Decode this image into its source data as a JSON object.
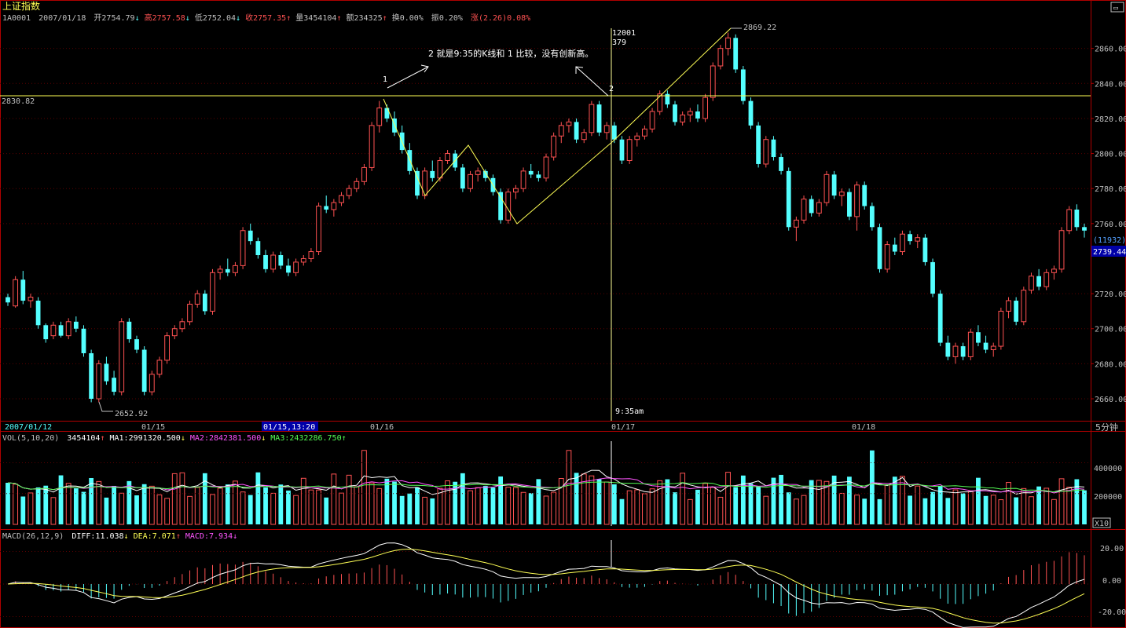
{
  "header": {
    "index_name": "上证指数",
    "code": "1A0001",
    "date": "2007/01/18",
    "open_label": "开",
    "open": "2754.79",
    "high_label": "高",
    "high": "2757.58",
    "low_label": "低",
    "low": "2752.04",
    "close_label": "收",
    "close": "2757.35",
    "volume_label": "量",
    "volume": "3454104",
    "amount_label": "额",
    "amount": "234325",
    "turnover_label": "换",
    "turnover": "0.00%",
    "amplitude_label": "振",
    "amplitude": "0.20%",
    "change_label": "涨",
    "change": "(2.26)",
    "change_pct": "0.08%"
  },
  "colors": {
    "background": "#000000",
    "up": "#ff5252",
    "down": "#54ffff",
    "axis": "#b00000",
    "yellow": "#ffff55",
    "white": "#ffffff",
    "magenta": "#ff55ff",
    "green": "#55ff55",
    "label_bg": "#0000a8"
  },
  "price_axis": {
    "ticks": [
      "2860.00",
      "2840.00",
      "2820.00",
      "2800.00",
      "2780.00",
      "2760.00",
      "2720.00",
      "2700.00",
      "2680.00",
      "2660.00"
    ],
    "cursor_value": "2739.44",
    "cursor_count": "(11932)"
  },
  "time_axis": {
    "labels": [
      "2007/01/12",
      "01/15",
      "01/16",
      "01/17",
      "01/18"
    ],
    "highlight_label": "01/15,13:20",
    "period": "5分钟"
  },
  "annotations": {
    "high_label": "2869.22",
    "low_label": "2652.92",
    "hline_label": "2830.82",
    "point1": "1",
    "point2": "2",
    "note": "2 就是9:35的K线和 1 比较，没有创新高。",
    "cursor_top1": "12001",
    "cursor_top2": "379",
    "cursor_time": "9:35am"
  },
  "volume_panel": {
    "title": "VOL(5,10,20)",
    "value": "3454104",
    "ma1_label": "MA1:",
    "ma1": "2991320.500",
    "ma2_label": "MA2:",
    "ma2": "2842381.500",
    "ma3_label": "MA3:",
    "ma3": "2432286.750",
    "ticks": [
      "400000",
      "200000"
    ],
    "unit": "X10"
  },
  "macd_panel": {
    "title": "MACD(26,12,9)",
    "diff_label": "DIFF:",
    "diff": "11.038",
    "dea_label": "DEA:",
    "dea": "7.071",
    "macd_label": "MACD:",
    "macd": "7.934",
    "ticks": [
      "20.00",
      "0.00",
      "-20.00"
    ]
  },
  "chart_data": {
    "type": "candlestick",
    "y_range": [
      2646,
      2872
    ],
    "volume_range": [
      0,
      540000
    ],
    "macd_range": [
      -26,
      26
    ],
    "candles": [
      [
        2718,
        2720,
        2713,
        2715
      ],
      [
        2713,
        2730,
        2712,
        2728
      ],
      [
        2728,
        2733,
        2714,
        2716
      ],
      [
        2716,
        2720,
        2712,
        2718
      ],
      [
        2716,
        2718,
        2700,
        2702
      ],
      [
        2702,
        2703,
        2692,
        2694
      ],
      [
        2696,
        2704,
        2694,
        2702
      ],
      [
        2702,
        2704,
        2695,
        2696
      ],
      [
        2696,
        2706,
        2694,
        2704
      ],
      [
        2704,
        2707,
        2698,
        2700
      ],
      [
        2700,
        2702,
        2684,
        2686
      ],
      [
        2686,
        2688,
        2658,
        2660
      ],
      [
        2660,
        2682,
        2658,
        2680
      ],
      [
        2680,
        2684,
        2668,
        2670
      ],
      [
        2672,
        2676,
        2662,
        2664
      ],
      [
        2664,
        2706,
        2662,
        2704
      ],
      [
        2704,
        2706,
        2692,
        2694
      ],
      [
        2694,
        2696,
        2686,
        2688
      ],
      [
        2688,
        2690,
        2662,
        2664
      ],
      [
        2664,
        2676,
        2662,
        2674
      ],
      [
        2674,
        2684,
        2672,
        2682
      ],
      [
        2682,
        2698,
        2680,
        2696
      ],
      [
        2696,
        2702,
        2694,
        2700
      ],
      [
        2700,
        2706,
        2698,
        2704
      ],
      [
        2704,
        2716,
        2702,
        2714
      ],
      [
        2714,
        2722,
        2712,
        2720
      ],
      [
        2720,
        2722,
        2708,
        2710
      ],
      [
        2710,
        2734,
        2708,
        2732
      ],
      [
        2732,
        2736,
        2728,
        2734
      ],
      [
        2734,
        2740,
        2730,
        2732
      ],
      [
        2732,
        2738,
        2730,
        2736
      ],
      [
        2736,
        2758,
        2734,
        2756
      ],
      [
        2756,
        2760,
        2748,
        2750
      ],
      [
        2750,
        2752,
        2740,
        2742
      ],
      [
        2742,
        2745,
        2732,
        2734
      ],
      [
        2734,
        2744,
        2732,
        2742
      ],
      [
        2742,
        2744,
        2734,
        2736
      ],
      [
        2736,
        2740,
        2730,
        2732
      ],
      [
        2732,
        2740,
        2730,
        2738
      ],
      [
        2738,
        2742,
        2736,
        2740
      ],
      [
        2740,
        2746,
        2738,
        2744
      ],
      [
        2744,
        2772,
        2742,
        2770
      ],
      [
        2770,
        2776,
        2766,
        2768
      ],
      [
        2768,
        2774,
        2764,
        2772
      ],
      [
        2772,
        2778,
        2770,
        2776
      ],
      [
        2776,
        2782,
        2774,
        2780
      ],
      [
        2780,
        2786,
        2778,
        2784
      ],
      [
        2784,
        2794,
        2782,
        2792
      ],
      [
        2792,
        2818,
        2790,
        2816
      ],
      [
        2816,
        2830,
        2812,
        2826
      ],
      [
        2826,
        2828,
        2818,
        2820
      ],
      [
        2820,
        2824,
        2810,
        2812
      ],
      [
        2812,
        2816,
        2800,
        2802
      ],
      [
        2802,
        2806,
        2788,
        2790
      ],
      [
        2790,
        2792,
        2774,
        2776
      ],
      [
        2776,
        2792,
        2774,
        2790
      ],
      [
        2790,
        2796,
        2784,
        2786
      ],
      [
        2786,
        2798,
        2784,
        2796
      ],
      [
        2796,
        2802,
        2794,
        2800
      ],
      [
        2800,
        2802,
        2790,
        2792
      ],
      [
        2792,
        2794,
        2778,
        2780
      ],
      [
        2780,
        2790,
        2778,
        2788
      ],
      [
        2788,
        2792,
        2784,
        2790
      ],
      [
        2790,
        2791,
        2784,
        2786
      ],
      [
        2786,
        2788,
        2776,
        2778
      ],
      [
        2778,
        2780,
        2760,
        2762
      ],
      [
        2762,
        2780,
        2760,
        2778
      ],
      [
        2778,
        2782,
        2774,
        2780
      ],
      [
        2780,
        2792,
        2778,
        2790
      ],
      [
        2790,
        2794,
        2786,
        2788
      ],
      [
        2788,
        2790,
        2784,
        2786
      ],
      [
        2786,
        2800,
        2784,
        2798
      ],
      [
        2798,
        2812,
        2796,
        2810
      ],
      [
        2810,
        2818,
        2806,
        2816
      ],
      [
        2816,
        2820,
        2812,
        2818
      ],
      [
        2818,
        2820,
        2806,
        2808
      ],
      [
        2808,
        2814,
        2806,
        2812
      ],
      [
        2812,
        2830,
        2810,
        2828
      ],
      [
        2828,
        2830,
        2810,
        2812
      ],
      [
        2812,
        2818,
        2808,
        2816
      ],
      [
        2816,
        2818,
        2806,
        2808
      ],
      [
        2808,
        2810,
        2794,
        2796
      ],
      [
        2796,
        2810,
        2794,
        2808
      ],
      [
        2808,
        2812,
        2804,
        2810
      ],
      [
        2810,
        2816,
        2808,
        2814
      ],
      [
        2814,
        2826,
        2812,
        2824
      ],
      [
        2824,
        2836,
        2822,
        2834
      ],
      [
        2834,
        2836,
        2826,
        2828
      ],
      [
        2828,
        2830,
        2816,
        2818
      ],
      [
        2818,
        2824,
        2816,
        2822
      ],
      [
        2822,
        2826,
        2818,
        2824
      ],
      [
        2824,
        2828,
        2818,
        2820
      ],
      [
        2820,
        2834,
        2818,
        2832
      ],
      [
        2832,
        2852,
        2830,
        2850
      ],
      [
        2850,
        2862,
        2848,
        2860
      ],
      [
        2860,
        2869,
        2856,
        2866
      ],
      [
        2866,
        2868,
        2846,
        2848
      ],
      [
        2848,
        2850,
        2828,
        2830
      ],
      [
        2830,
        2832,
        2814,
        2816
      ],
      [
        2816,
        2818,
        2792,
        2794
      ],
      [
        2794,
        2810,
        2792,
        2808
      ],
      [
        2808,
        2810,
        2796,
        2798
      ],
      [
        2798,
        2800,
        2788,
        2790
      ],
      [
        2790,
        2792,
        2756,
        2758
      ],
      [
        2758,
        2764,
        2750,
        2762
      ],
      [
        2762,
        2776,
        2760,
        2774
      ],
      [
        2774,
        2776,
        2764,
        2766
      ],
      [
        2766,
        2774,
        2764,
        2772
      ],
      [
        2772,
        2790,
        2770,
        2788
      ],
      [
        2788,
        2790,
        2774,
        2776
      ],
      [
        2776,
        2780,
        2770,
        2778
      ],
      [
        2778,
        2780,
        2762,
        2764
      ],
      [
        2764,
        2784,
        2756,
        2782
      ],
      [
        2782,
        2784,
        2768,
        2770
      ],
      [
        2770,
        2772,
        2756,
        2758
      ],
      [
        2758,
        2760,
        2732,
        2734
      ],
      [
        2734,
        2750,
        2732,
        2748
      ],
      [
        2748,
        2752,
        2742,
        2744
      ],
      [
        2744,
        2756,
        2742,
        2754
      ],
      [
        2754,
        2756,
        2748,
        2750
      ],
      [
        2750,
        2754,
        2746,
        2752
      ],
      [
        2752,
        2754,
        2736,
        2738
      ],
      [
        2738,
        2740,
        2718,
        2720
      ],
      [
        2720,
        2722,
        2690,
        2692
      ],
      [
        2692,
        2696,
        2682,
        2684
      ],
      [
        2684,
        2692,
        2680,
        2690
      ],
      [
        2690,
        2692,
        2682,
        2684
      ],
      [
        2684,
        2700,
        2682,
        2698
      ],
      [
        2698,
        2702,
        2690,
        2692
      ],
      [
        2692,
        2696,
        2686,
        2688
      ],
      [
        2688,
        2692,
        2684,
        2690
      ],
      [
        2690,
        2712,
        2688,
        2710
      ],
      [
        2710,
        2718,
        2706,
        2716
      ],
      [
        2716,
        2718,
        2702,
        2704
      ],
      [
        2704,
        2724,
        2702,
        2722
      ],
      [
        2722,
        2732,
        2720,
        2730
      ],
      [
        2730,
        2734,
        2722,
        2724
      ],
      [
        2724,
        2734,
        2722,
        2732
      ],
      [
        2732,
        2736,
        2728,
        2734
      ],
      [
        2734,
        2758,
        2732,
        2756
      ],
      [
        2756,
        2770,
        2754,
        2768
      ],
      [
        2768,
        2771,
        2756,
        2758
      ],
      [
        2758,
        2760,
        2752,
        2756
      ]
    ]
  }
}
